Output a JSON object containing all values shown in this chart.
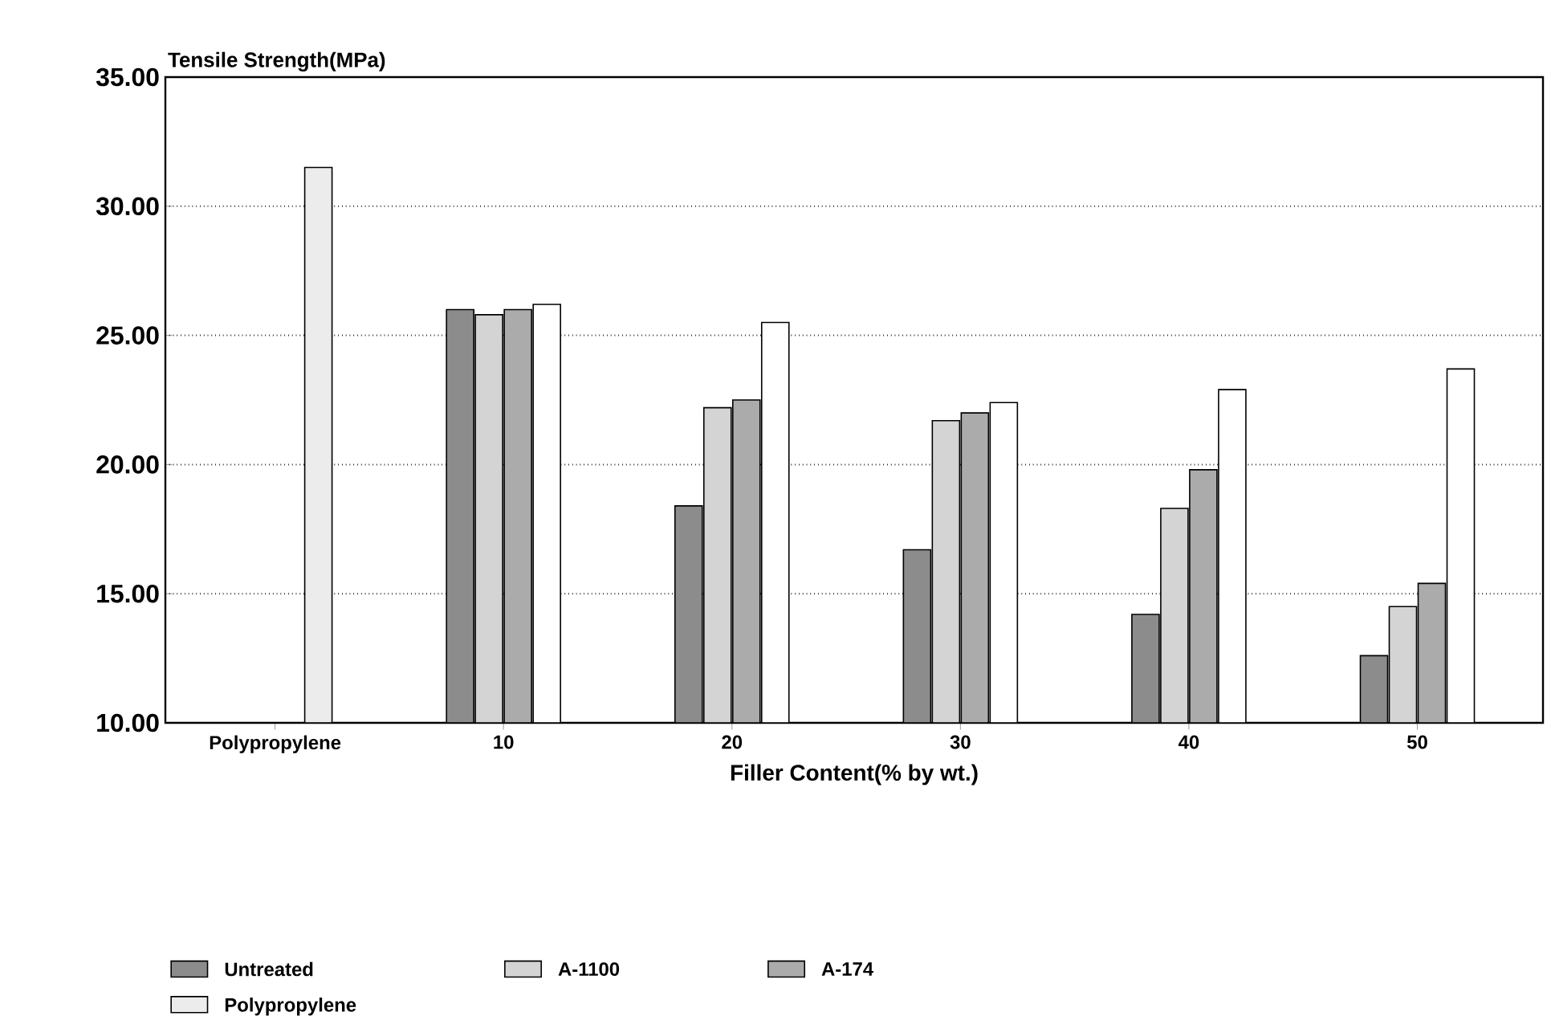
{
  "chart_data": {
    "type": "bar",
    "ylabel": "Tensile Strength(MPa)",
    "xlabel": "Filler Content(% by wt.)",
    "categories": [
      "Polypropylene",
      "10",
      "20",
      "30",
      "40",
      "50"
    ],
    "series": [
      {
        "name": "Untreated",
        "color": "#8c8c8c",
        "values": [
          null,
          26.0,
          18.4,
          16.7,
          14.2,
          12.6
        ]
      },
      {
        "name": "A-1100",
        "color": "#d4d4d4",
        "values": [
          null,
          25.8,
          22.2,
          21.7,
          18.3,
          14.5
        ]
      },
      {
        "name": "A-174",
        "color": "#ababab",
        "values": [
          null,
          26.0,
          22.5,
          22.0,
          19.8,
          15.4
        ]
      },
      {
        "color": "#ffffff",
        "values": [
          null,
          26.2,
          25.5,
          22.4,
          22.9,
          23.7
        ]
      },
      {
        "name": "Polypropylene",
        "color": "#ececec",
        "values": [
          31.5,
          null,
          null,
          null,
          null,
          null
        ]
      }
    ],
    "ylim": [
      10,
      35
    ],
    "yticks": [
      {
        "value": 10,
        "label": "10.00"
      },
      {
        "value": 15,
        "label": "15.00"
      },
      {
        "value": 20,
        "label": "20.00"
      },
      {
        "value": 25,
        "label": "25.00"
      },
      {
        "value": 30,
        "label": "30.00"
      },
      {
        "value": 35,
        "label": "35.00"
      }
    ],
    "grid": "y",
    "legend": "bottom"
  }
}
